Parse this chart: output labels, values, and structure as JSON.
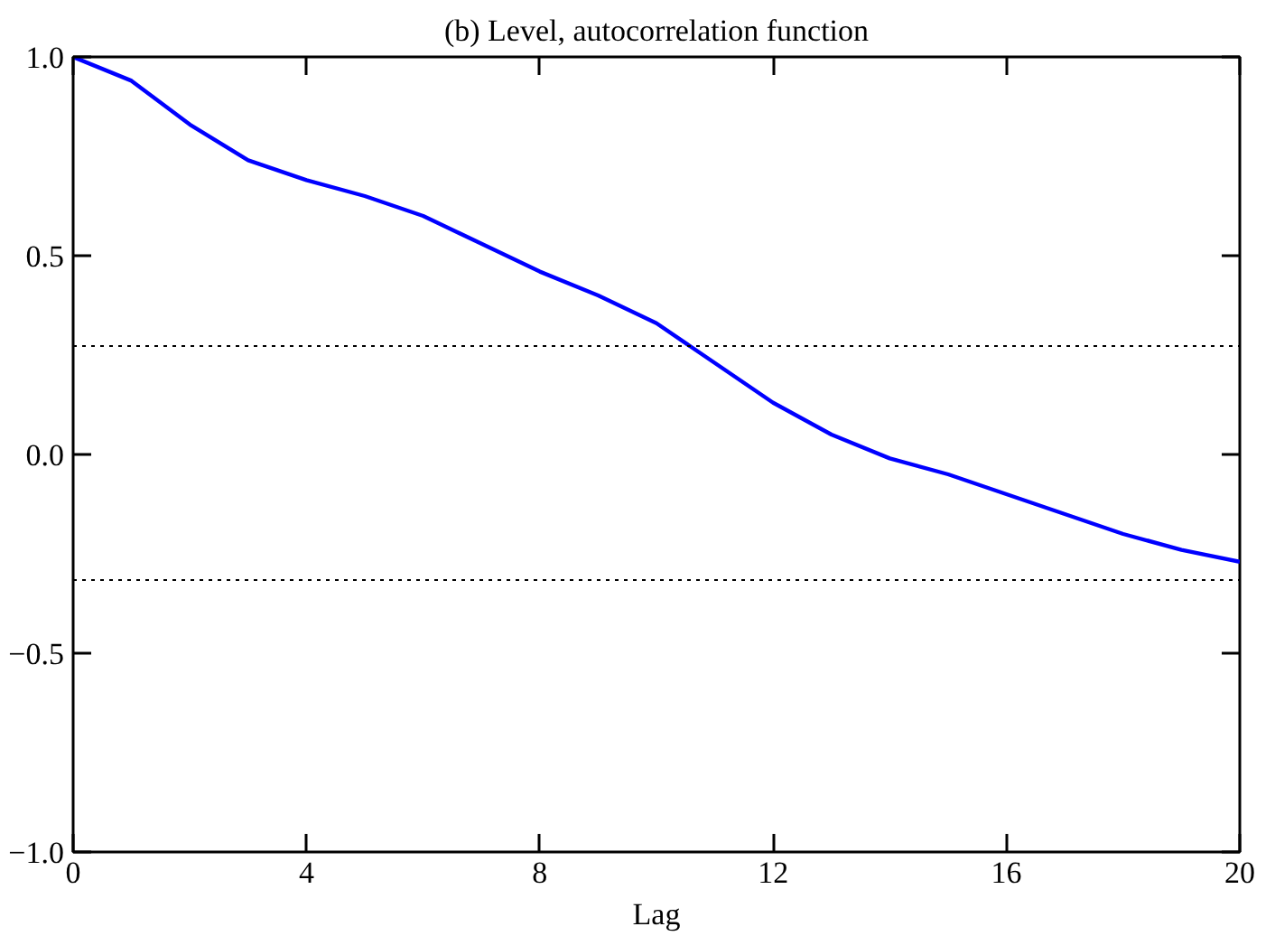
{
  "chart_data": {
    "type": "line",
    "title": "(b) Level, autocorrelation function",
    "xlabel": "Lag",
    "x": [
      0,
      1,
      2,
      3,
      4,
      5,
      6,
      7,
      8,
      9,
      10,
      11,
      12,
      13,
      14,
      15,
      16,
      17,
      18,
      19,
      20
    ],
    "series": [
      {
        "color": "#0000ff",
        "values": [
          1.0,
          0.94,
          0.83,
          0.74,
          0.69,
          0.65,
          0.6,
          0.53,
          0.46,
          0.4,
          0.33,
          0.23,
          0.13,
          0.05,
          -0.01,
          -0.05,
          -0.1,
          -0.15,
          -0.2,
          -0.24,
          -0.27
        ]
      }
    ],
    "xlim": [
      0,
      20
    ],
    "ylim": [
      -1.0,
      1.0
    ],
    "xticks": [
      0,
      4,
      8,
      12,
      16,
      20
    ],
    "yticks": [
      {
        "value": -1.0,
        "label": "−1.0"
      },
      {
        "value": -0.5,
        "label": "−0.5"
      },
      {
        "value": 0.0,
        "label": "0.0"
      },
      {
        "value": 0.5,
        "label": "0.5"
      },
      {
        "value": 1.0,
        "label": "1.0"
      }
    ],
    "ref_lines": [
      {
        "axis": "y",
        "value": 0.273,
        "color": "#000000",
        "line_style": "dotted"
      },
      {
        "axis": "y",
        "value": -0.316,
        "color": "#000000",
        "line_style": "dotted"
      }
    ],
    "grid": false,
    "line_style": "solid",
    "marker": "none"
  }
}
